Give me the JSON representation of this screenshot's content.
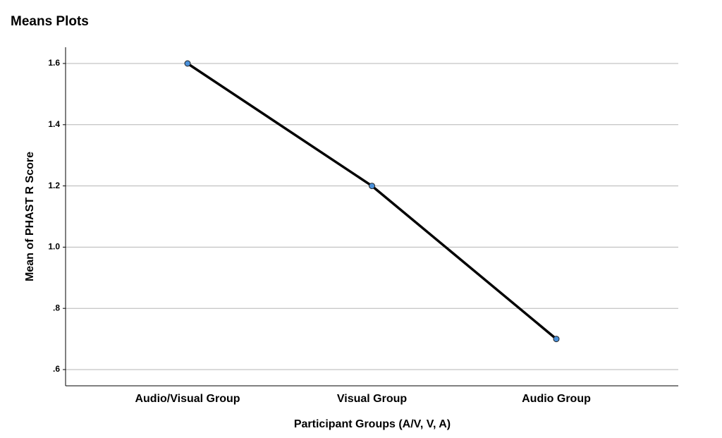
{
  "chart_data": {
    "type": "line",
    "title": "Means Plots",
    "x_label": "Participant Groups (A/V, V, A)",
    "y_label": "Mean of PHAST R Score",
    "categories": [
      "Audio/Visual Group",
      "Visual Group",
      "Audio Group"
    ],
    "series": [
      {
        "name": "Mean of PHAST R Score",
        "color": "#4a90d9",
        "values": [
          1.6,
          1.2,
          0.7
        ]
      }
    ],
    "ylim": [
      0.547,
      1.653
    ],
    "yticks": [
      {
        "value": 0.6,
        "label": ".6"
      },
      {
        "value": 0.8,
        "label": ".8"
      },
      {
        "value": 1.0,
        "label": "1.0"
      },
      1.2,
      1.4,
      1.6
    ],
    "grid": true
  }
}
